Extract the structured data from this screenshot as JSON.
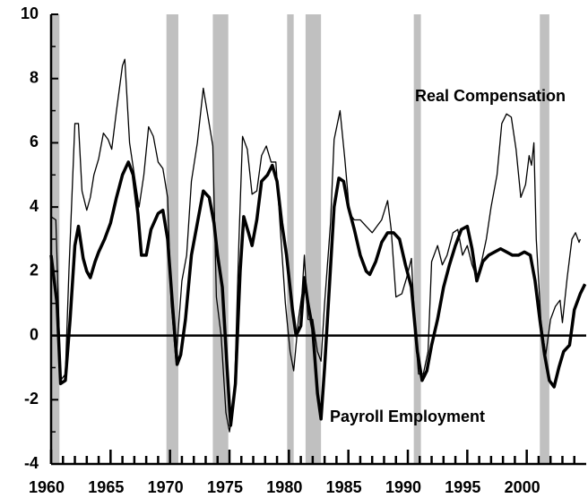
{
  "chart_data": {
    "type": "line",
    "xlim": [
      1960,
      2005
    ],
    "ylim": [
      -4,
      10
    ],
    "xticks": [
      1960,
      1965,
      1970,
      1975,
      1980,
      1985,
      1990,
      1995,
      2000
    ],
    "xminor": [
      1961,
      1962,
      1963,
      1964,
      1966,
      1967,
      1968,
      1969,
      1971,
      1972,
      1973,
      1974,
      1976,
      1977,
      1978,
      1979,
      1981,
      1982,
      1983,
      1984,
      1986,
      1987,
      1988,
      1989,
      1991,
      1992,
      1993,
      1994,
      1996,
      1997,
      1998,
      1999,
      2001,
      2002,
      2003,
      2004
    ],
    "yticks": [
      -4,
      -2,
      0,
      2,
      4,
      6,
      8,
      10
    ],
    "yminor": [
      -3,
      -1,
      1,
      3,
      5,
      7,
      9
    ],
    "hline": 0,
    "shade_color": "#c0c0c0",
    "recessions": [
      [
        1960.0,
        1960.7
      ],
      [
        1969.7,
        1970.7
      ],
      [
        1973.6,
        1974.9
      ],
      [
        1979.85,
        1980.4
      ],
      [
        1981.4,
        1982.7
      ],
      [
        1990.5,
        1991.1
      ],
      [
        2001.1,
        2001.9
      ]
    ],
    "series": [
      {
        "name": "Real Compensation",
        "color": "#000000",
        "width": 1.3,
        "x": [
          1960.0,
          1960.4,
          1960.8,
          1961.2,
          1961.5,
          1962.0,
          1962.3,
          1962.6,
          1963.0,
          1963.3,
          1963.6,
          1964.0,
          1964.4,
          1964.8,
          1965.1,
          1965.5,
          1966.0,
          1966.2,
          1966.6,
          1967.0,
          1967.4,
          1967.8,
          1968.2,
          1968.6,
          1969.0,
          1969.4,
          1969.8,
          1970.1,
          1970.5,
          1971.0,
          1971.4,
          1971.8,
          1972.3,
          1972.8,
          1973.2,
          1973.6,
          1973.9,
          1974.3,
          1974.7,
          1975.0,
          1975.4,
          1975.8,
          1976.1,
          1976.5,
          1976.9,
          1977.3,
          1977.7,
          1978.1,
          1978.5,
          1978.9,
          1979.3,
          1979.7,
          1980.1,
          1980.4,
          1980.8,
          1981.1,
          1981.3,
          1981.6,
          1982.0,
          1982.4,
          1982.7,
          1983.0,
          1983.5,
          1983.8,
          1984.3,
          1984.7,
          1985.1,
          1985.5,
          1986.0,
          1986.5,
          1987.0,
          1987.4,
          1987.8,
          1988.3,
          1988.6,
          1989.0,
          1989.5,
          1989.9,
          1990.3,
          1990.6,
          1990.9,
          1991.3,
          1991.7,
          1992.0,
          1992.5,
          1992.9,
          1993.3,
          1993.8,
          1994.2,
          1994.6,
          1995.0,
          1995.4,
          1995.8,
          1996.2,
          1996.6,
          1997.0,
          1997.5,
          1997.9,
          1998.3,
          1998.7,
          1999.1,
          1999.5,
          1999.9,
          2000.2,
          2000.4,
          2000.6,
          2000.8,
          2001.2,
          2001.6,
          2002.0,
          2002.4,
          2002.8,
          2003.0,
          2003.4,
          2003.8,
          2004.1,
          2004.4,
          2004.5
        ],
        "values": [
          3.7,
          3.6,
          -1.4,
          -1.2,
          2.0,
          6.6,
          6.6,
          4.5,
          3.9,
          4.3,
          5.0,
          5.5,
          6.3,
          6.1,
          5.8,
          7.0,
          8.4,
          8.6,
          6.0,
          5.0,
          4.0,
          5.0,
          6.5,
          6.2,
          5.4,
          5.2,
          4.3,
          1.0,
          -0.8,
          1.7,
          2.5,
          4.8,
          6.0,
          7.7,
          6.8,
          5.9,
          1.2,
          0.0,
          -2.4,
          -3.0,
          -2.0,
          3.0,
          6.2,
          5.8,
          4.4,
          4.5,
          5.6,
          5.9,
          5.4,
          5.4,
          3.2,
          1.0,
          -0.5,
          -1.1,
          0.5,
          1.3,
          2.5,
          0.5,
          0.5,
          -0.5,
          -0.8,
          1.0,
          3.5,
          6.1,
          7.0,
          5.5,
          3.8,
          3.6,
          3.6,
          3.4,
          3.2,
          3.4,
          3.6,
          4.2,
          3.3,
          1.2,
          1.3,
          1.8,
          2.4,
          0.2,
          -1.2,
          -1.2,
          -0.5,
          2.3,
          2.8,
          2.2,
          2.5,
          3.2,
          3.3,
          2.5,
          2.8,
          2.2,
          1.8,
          2.3,
          3.0,
          4.0,
          5.0,
          6.6,
          6.9,
          6.8,
          5.8,
          4.3,
          4.7,
          5.6,
          5.3,
          6.0,
          3.0,
          0.4,
          -0.6,
          0.5,
          0.9,
          1.1,
          0.4,
          1.8,
          3.0,
          3.2,
          2.9,
          3.0
        ]
      },
      {
        "name": "Payroll Employment",
        "color": "#000000",
        "width": 3.5,
        "x": [
          1960.0,
          1960.5,
          1960.8,
          1961.2,
          1961.6,
          1962.0,
          1962.3,
          1962.7,
          1963.0,
          1963.3,
          1963.7,
          1964.0,
          1964.5,
          1965.0,
          1965.5,
          1966.0,
          1966.5,
          1966.9,
          1967.3,
          1967.6,
          1968.0,
          1968.4,
          1969.0,
          1969.4,
          1969.8,
          1970.2,
          1970.6,
          1970.9,
          1971.3,
          1971.8,
          1972.3,
          1972.8,
          1973.3,
          1973.7,
          1974.0,
          1974.4,
          1974.8,
          1975.1,
          1975.5,
          1975.9,
          1976.2,
          1976.6,
          1976.9,
          1977.3,
          1977.7,
          1978.2,
          1978.6,
          1979.0,
          1979.4,
          1979.8,
          1980.3,
          1980.6,
          1981.0,
          1981.3,
          1981.6,
          1982.0,
          1982.4,
          1982.7,
          1983.0,
          1983.4,
          1983.8,
          1984.2,
          1984.6,
          1985.0,
          1985.5,
          1986.0,
          1986.5,
          1986.8,
          1987.3,
          1987.8,
          1988.3,
          1988.8,
          1989.3,
          1989.8,
          1990.3,
          1990.8,
          1991.2,
          1991.6,
          1992.0,
          1992.5,
          1993.0,
          1993.5,
          1994.0,
          1994.5,
          1995.0,
          1995.4,
          1995.8,
          1996.3,
          1996.8,
          1997.3,
          1997.8,
          1998.3,
          1998.8,
          1999.3,
          1999.8,
          2000.3,
          2000.7,
          2001.1,
          2001.5,
          2001.9,
          2002.3,
          2002.7,
          2003.1,
          2003.6,
          2004.0,
          2004.5,
          2004.9
        ],
        "values": [
          2.5,
          1.0,
          -1.5,
          -1.4,
          0.5,
          2.8,
          3.4,
          2.4,
          2.0,
          1.8,
          2.3,
          2.6,
          3.0,
          3.5,
          4.3,
          5.0,
          5.4,
          5.0,
          3.8,
          2.5,
          2.5,
          3.3,
          3.8,
          3.9,
          3.0,
          1.0,
          -0.9,
          -0.6,
          0.5,
          2.5,
          3.5,
          4.5,
          4.3,
          3.5,
          2.5,
          1.5,
          -1.0,
          -2.8,
          -1.5,
          2.0,
          3.7,
          3.2,
          2.8,
          3.6,
          4.8,
          5.0,
          5.3,
          4.8,
          3.5,
          2.5,
          0.8,
          0.0,
          0.3,
          1.8,
          1.0,
          0.2,
          -1.8,
          -2.6,
          -1.0,
          1.5,
          4.0,
          4.9,
          4.8,
          4.0,
          3.3,
          2.5,
          2.0,
          1.9,
          2.3,
          2.9,
          3.2,
          3.2,
          3.0,
          2.2,
          1.5,
          -0.5,
          -1.4,
          -1.1,
          -0.3,
          0.5,
          1.5,
          2.2,
          2.8,
          3.3,
          3.4,
          2.7,
          1.7,
          2.3,
          2.5,
          2.6,
          2.7,
          2.6,
          2.5,
          2.5,
          2.6,
          2.5,
          1.7,
          0.5,
          -0.6,
          -1.4,
          -1.6,
          -1.0,
          -0.5,
          -0.3,
          0.8,
          1.3,
          1.6
        ]
      }
    ]
  }
}
